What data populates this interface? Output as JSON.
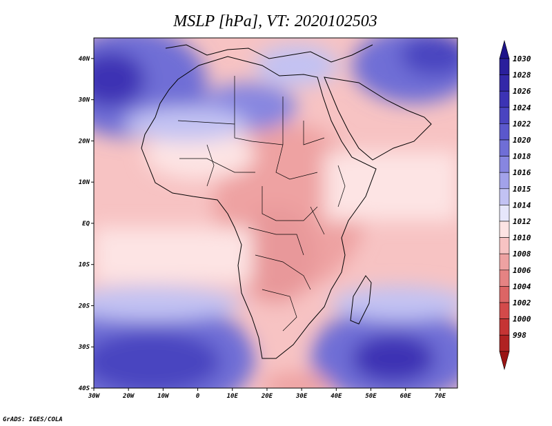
{
  "title": "MSLP [hPa], VT: 2020102503",
  "credit": "GrADS: IGES/COLA",
  "map": {
    "region": "Africa",
    "variable": "Mean sea level pressure",
    "units": "hPa",
    "lon_range": [
      -30,
      75
    ],
    "lat_range": [
      -40,
      45
    ],
    "lon_ticks": [
      {
        "value": -30,
        "label": "30W"
      },
      {
        "value": -20,
        "label": "20W"
      },
      {
        "value": -10,
        "label": "10W"
      },
      {
        "value": 0,
        "label": "0"
      },
      {
        "value": 10,
        "label": "10E"
      },
      {
        "value": 20,
        "label": "20E"
      },
      {
        "value": 30,
        "label": "30E"
      },
      {
        "value": 40,
        "label": "40E"
      },
      {
        "value": 50,
        "label": "50E"
      },
      {
        "value": 60,
        "label": "60E"
      },
      {
        "value": 70,
        "label": "70E"
      }
    ],
    "lat_ticks": [
      {
        "value": 40,
        "label": "40N"
      },
      {
        "value": 30,
        "label": "30N"
      },
      {
        "value": 20,
        "label": "20N"
      },
      {
        "value": 10,
        "label": "10N"
      },
      {
        "value": 0,
        "label": "EQ"
      },
      {
        "value": -10,
        "label": "10S"
      },
      {
        "value": -20,
        "label": "20S"
      },
      {
        "value": -30,
        "label": "30S"
      },
      {
        "value": -40,
        "label": "40S"
      }
    ]
  },
  "colorbar": {
    "levels": [
      {
        "label": "1030",
        "color": "#2a1f9c"
      },
      {
        "label": "1028",
        "color": "#3328a8"
      },
      {
        "label": "1026",
        "color": "#3c33b4"
      },
      {
        "label": "1024",
        "color": "#4a44c0"
      },
      {
        "label": "1022",
        "color": "#5b58cc"
      },
      {
        "label": "1020",
        "color": "#6f6ed6"
      },
      {
        "label": "1018",
        "color": "#8786e0"
      },
      {
        "label": "1016",
        "color": "#a2a2ea"
      },
      {
        "label": "1015",
        "color": "#c2c2f3"
      },
      {
        "label": "1014",
        "color": "#e6e6fb"
      },
      {
        "label": "1012",
        "color": "#fde4e4"
      },
      {
        "label": "1010",
        "color": "#f7c3c3"
      },
      {
        "label": "1008",
        "color": "#eea2a2"
      },
      {
        "label": "1006",
        "color": "#e58383"
      },
      {
        "label": "1004",
        "color": "#dc6565"
      },
      {
        "label": "1002",
        "color": "#d34a4a"
      },
      {
        "label": "1000",
        "color": "#c53434"
      },
      {
        "label": "998",
        "color": "#b02222"
      }
    ],
    "top_arrow_color": "#1e148a",
    "bottom_arrow_color": "#9a1414"
  }
}
